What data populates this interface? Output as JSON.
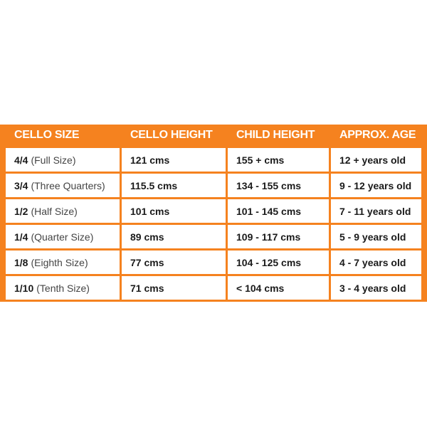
{
  "table": {
    "header": [
      "CELLO SIZE",
      "CELLO HEIGHT",
      "CHILD HEIGHT",
      "APPROX. AGE"
    ],
    "rows": [
      [
        "4/4",
        "(Full Size)",
        "121 cms",
        "155 + cms",
        "12 + years old"
      ],
      [
        "3/4",
        "(Three Quarters)",
        "115.5 cms",
        "134 - 155 cms",
        "9 - 12 years old"
      ],
      [
        "1/2",
        "(Half Size)",
        "101 cms",
        "101 - 145 cms",
        "7 - 11 years old"
      ],
      [
        "1/4",
        "(Quarter Size)",
        "89 cms",
        "109 - 117 cms",
        "5 - 9 years old"
      ],
      [
        "1/8",
        "(Eighth Size)",
        "77 cms",
        "104 - 125 cms",
        "4 - 7 years old"
      ],
      [
        "1/10",
        "(Tenth Size)",
        "71 cms",
        "< 104 cms",
        "3 - 4 years old"
      ]
    ]
  }
}
